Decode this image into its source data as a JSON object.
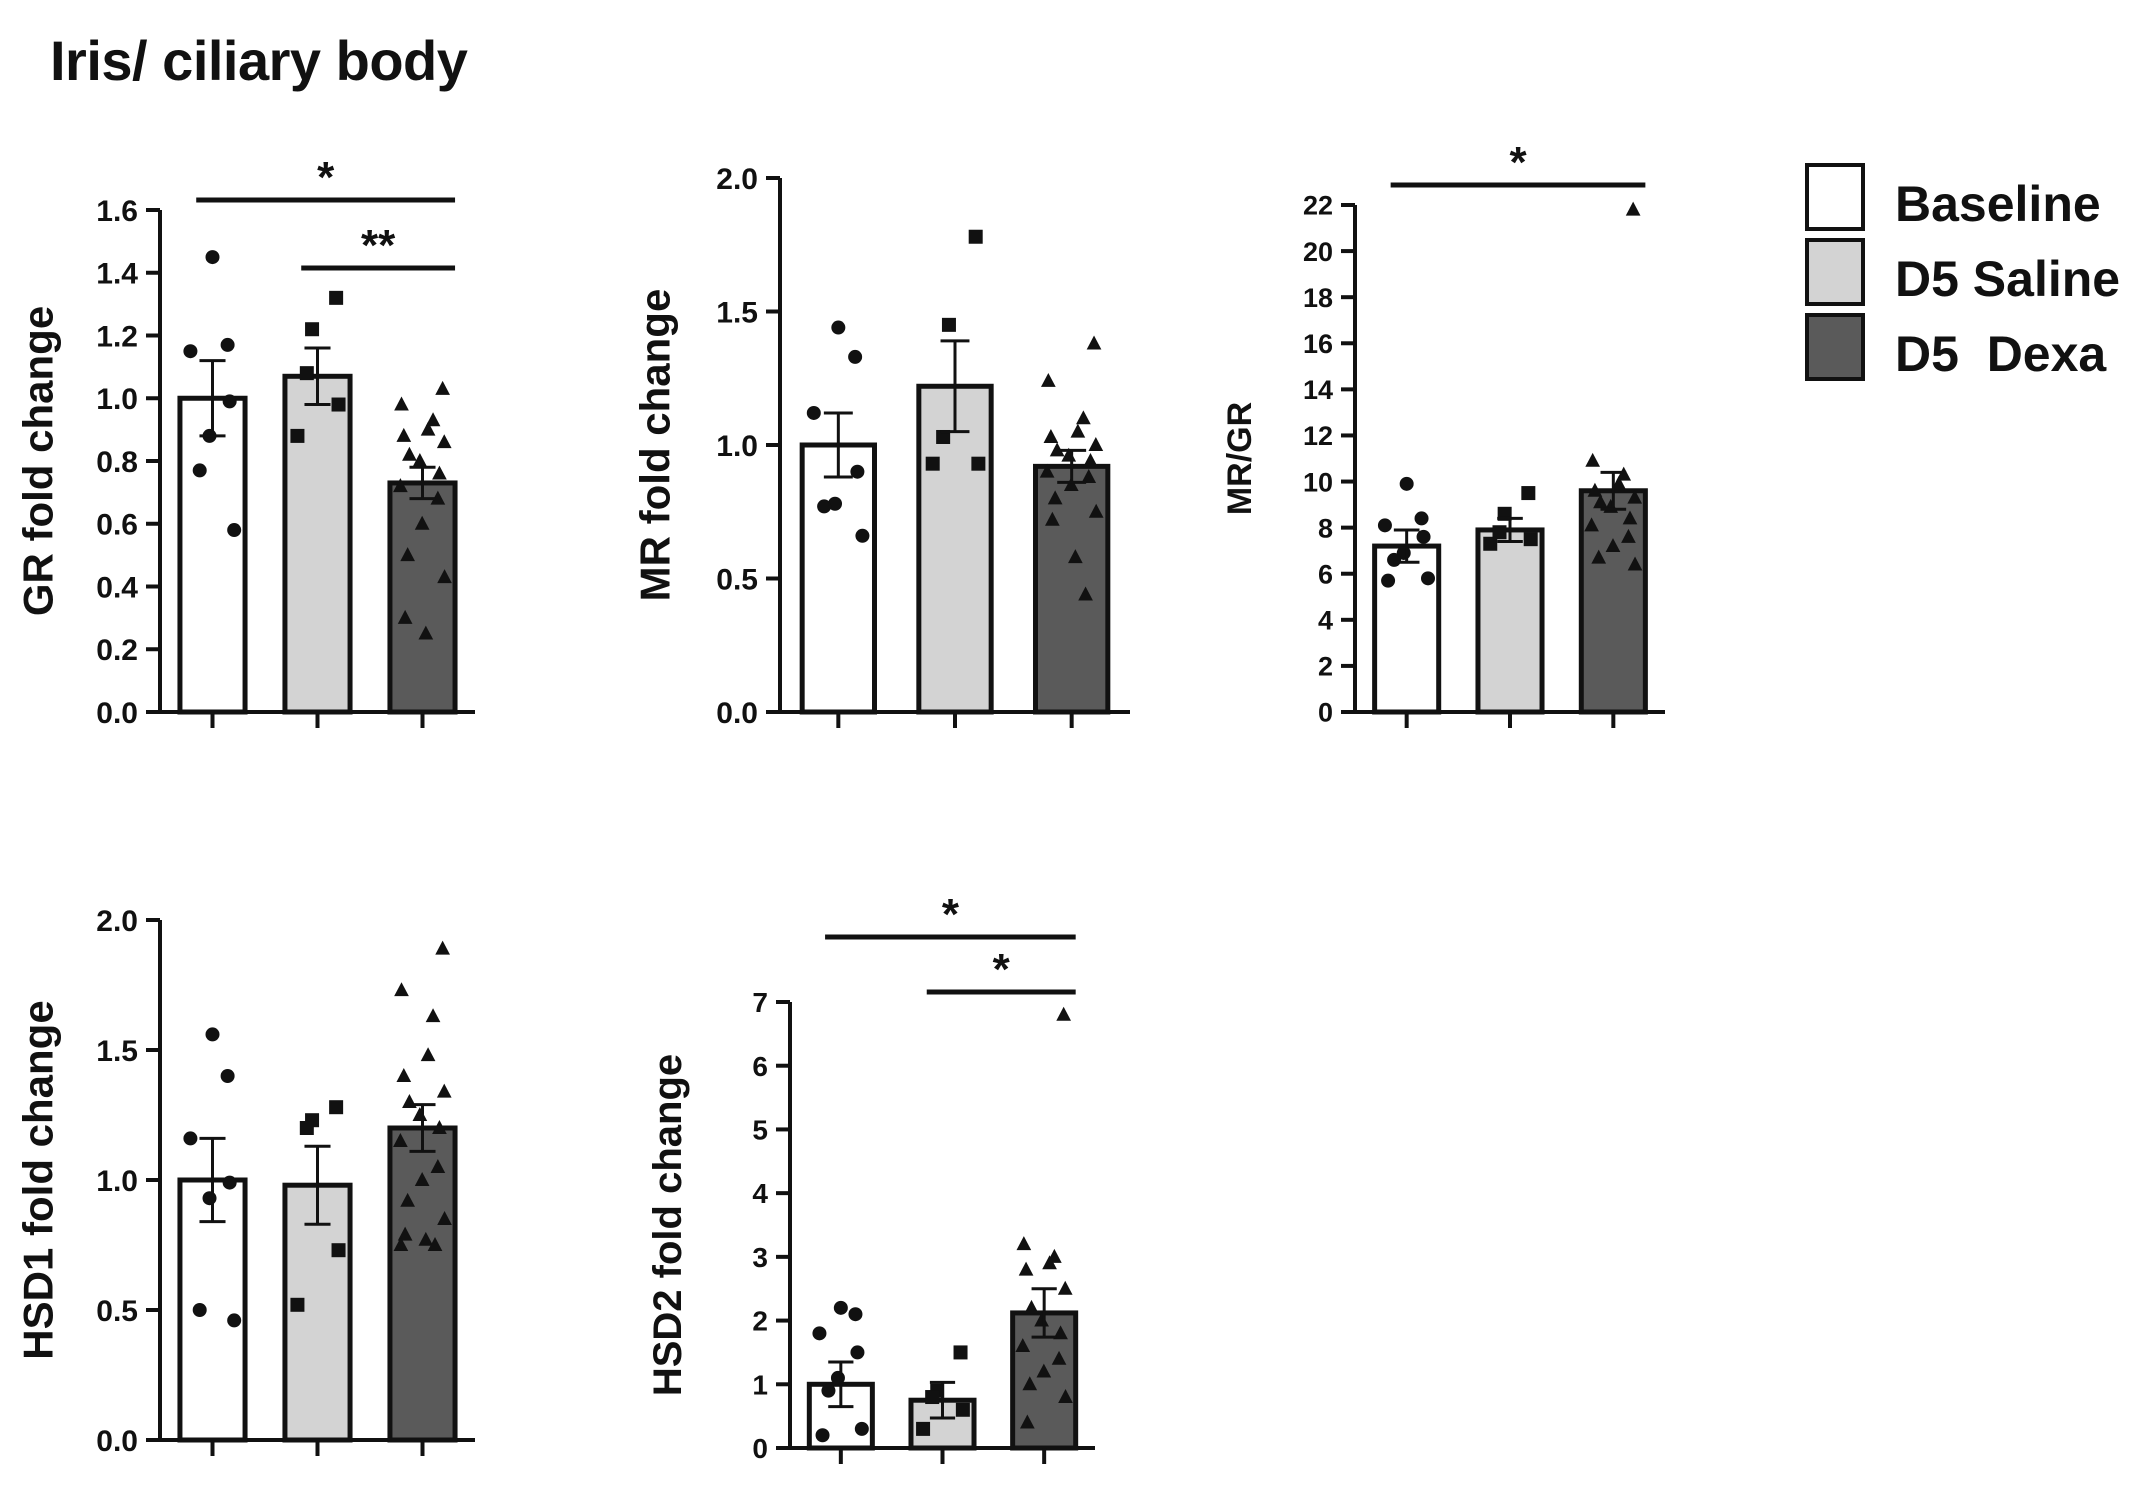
{
  "figure_title": "Iris/ ciliary body",
  "colors": {
    "Baseline": "#ffffff",
    "D5 Saline": "#d3d3d3",
    "D5 Dexa": "#5a5a5a",
    "ink": "#111111"
  },
  "legend": [
    {
      "label": "Baseline",
      "color": "#ffffff"
    },
    {
      "label": "D5 Saline",
      "color": "#d3d3d3"
    },
    {
      "label": "D5  Dexa",
      "color": "#5a5a5a"
    }
  ],
  "chart_data": [
    {
      "type": "bar",
      "id": "gr",
      "ylabel": "GR fold change",
      "ylim": [
        0,
        1.6
      ],
      "yticks": [
        "0.0",
        "0.2",
        "0.4",
        "0.6",
        "0.8",
        "1.0",
        "1.2",
        "1.4",
        "1.6"
      ],
      "categories": [
        "Baseline",
        "D5 Saline",
        "D5 Dexa"
      ],
      "values": [
        1.0,
        1.07,
        0.73
      ],
      "sem": [
        0.12,
        0.09,
        0.05
      ],
      "markers": [
        "circle",
        "square",
        "triangle"
      ],
      "points": [
        [
          1.45,
          1.17,
          1.15,
          0.99,
          0.88,
          0.77,
          0.58
        ],
        [
          1.32,
          1.22,
          1.08,
          0.98,
          0.88
        ],
        [
          1.03,
          0.98,
          0.93,
          0.9,
          0.88,
          0.86,
          0.82,
          0.8,
          0.76,
          0.72,
          0.68,
          0.6,
          0.5,
          0.43,
          0.3,
          0.25
        ]
      ],
      "significance": [
        {
          "from": 0,
          "to": 2,
          "label": "*"
        },
        {
          "from": 1,
          "to": 2,
          "label": "**"
        }
      ]
    },
    {
      "type": "bar",
      "id": "mr",
      "ylabel": "MR fold change",
      "ylim": [
        0,
        2.0
      ],
      "yticks": [
        "0.0",
        "0.5",
        "1.0",
        "1.5",
        "2.0"
      ],
      "categories": [
        "Baseline",
        "D5 Saline",
        "D5 Dexa"
      ],
      "values": [
        1.0,
        1.22,
        0.92
      ],
      "sem": [
        0.12,
        0.17,
        0.06
      ],
      "markers": [
        "circle",
        "square",
        "triangle"
      ],
      "points": [
        [
          1.44,
          1.33,
          1.12,
          0.9,
          0.78,
          0.77,
          0.66
        ],
        [
          1.78,
          1.45,
          1.03,
          0.93,
          0.93
        ],
        [
          1.38,
          1.24,
          1.1,
          1.05,
          1.03,
          1.0,
          0.98,
          0.96,
          0.94,
          0.9,
          0.88,
          0.85,
          0.8,
          0.75,
          0.72,
          0.58,
          0.44
        ]
      ],
      "significance": []
    },
    {
      "type": "bar",
      "id": "mrgr",
      "ylabel": "MR/GR",
      "ylim": [
        0,
        22
      ],
      "yticks": [
        "0",
        "2",
        "4",
        "6",
        "8",
        "10",
        "12",
        "14",
        "16",
        "18",
        "20",
        "22"
      ],
      "categories": [
        "Baseline",
        "D5 Saline",
        "D5 Dexa"
      ],
      "values": [
        7.2,
        7.9,
        9.6
      ],
      "sem": [
        0.7,
        0.5,
        0.8
      ],
      "markers": [
        "circle",
        "square",
        "triangle"
      ],
      "points": [
        [
          9.9,
          8.4,
          8.1,
          7.6,
          6.9,
          6.6,
          5.8,
          5.7
        ],
        [
          9.5,
          8.6,
          7.8,
          7.5,
          7.3
        ],
        [
          21.8,
          10.9,
          10.3,
          9.9,
          9.6,
          9.3,
          9.1,
          8.9,
          8.4,
          8.1,
          7.6,
          7.2,
          6.7,
          6.4
        ]
      ],
      "significance": [
        {
          "from": 0,
          "to": 2,
          "label": "*"
        }
      ]
    },
    {
      "type": "bar",
      "id": "hsd1",
      "ylabel": "HSD1 fold change",
      "ylim": [
        0,
        2.0
      ],
      "yticks": [
        "0.0",
        "0.5",
        "1.0",
        "1.5",
        "2.0"
      ],
      "categories": [
        "Baseline",
        "D5 Saline",
        "D5 Dexa"
      ],
      "values": [
        1.0,
        0.98,
        1.2
      ],
      "sem": [
        0.16,
        0.15,
        0.09
      ],
      "markers": [
        "circle",
        "square",
        "triangle"
      ],
      "points": [
        [
          1.56,
          1.4,
          1.16,
          0.99,
          0.93,
          0.5,
          0.46
        ],
        [
          1.28,
          1.23,
          1.2,
          0.73,
          0.52
        ],
        [
          1.89,
          1.73,
          1.63,
          1.48,
          1.4,
          1.34,
          1.3,
          1.25,
          1.2,
          1.15,
          1.05,
          1.0,
          0.92,
          0.85,
          0.79,
          0.77,
          0.75,
          0.75
        ]
      ],
      "significance": []
    },
    {
      "type": "bar",
      "id": "hsd2",
      "ylabel": "HSD2 fold change",
      "ylim": [
        0,
        7
      ],
      "yticks": [
        "0",
        "1",
        "2",
        "3",
        "4",
        "5",
        "6",
        "7"
      ],
      "categories": [
        "Baseline",
        "D5 Saline",
        "D5 Dexa"
      ],
      "values": [
        1.0,
        0.75,
        2.12
      ],
      "sem": [
        0.35,
        0.28,
        0.38
      ],
      "markers": [
        "circle",
        "square",
        "triangle"
      ],
      "points": [
        [
          2.2,
          2.1,
          1.8,
          1.5,
          1.1,
          0.9,
          0.3,
          0.2
        ],
        [
          1.5,
          0.9,
          0.8,
          0.6,
          0.3
        ],
        [
          6.8,
          3.2,
          3.0,
          2.9,
          2.8,
          2.5,
          2.2,
          2.0,
          1.8,
          1.6,
          1.4,
          1.2,
          1.0,
          0.8,
          0.4
        ]
      ],
      "significance": [
        {
          "from": 0,
          "to": 2,
          "label": "*"
        },
        {
          "from": 1,
          "to": 2,
          "label": "*"
        }
      ]
    }
  ]
}
